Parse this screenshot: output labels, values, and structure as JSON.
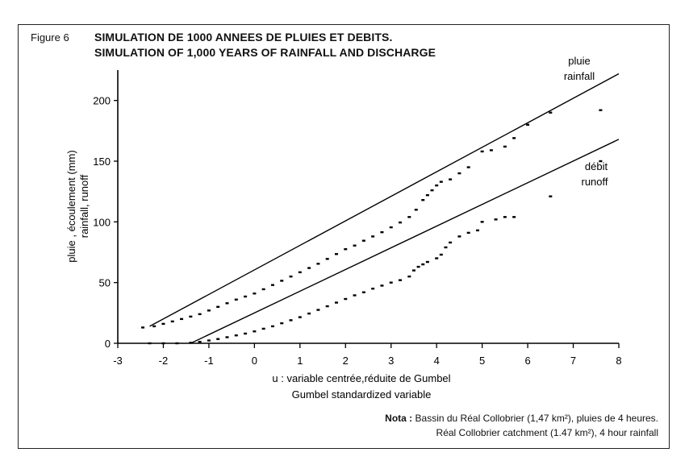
{
  "figure_label": "Figure 6",
  "title_fr": "SIMULATION DE 1000 ANNEES DE PLUIES ET DEBITS.",
  "title_en": "SIMULATION OF 1,000 YEARS OF RAINFALL AND DISCHARGE",
  "nota": {
    "prefix": "Nota :",
    "line1": "Bassin du Réal Collobrier (1,47 km²), pluies de 4 heures.",
    "line2": "Réal Collobrier catchment (1.47 km²), 4 hour rainfall"
  },
  "chart_data": {
    "type": "scatter",
    "xlabel_line1": "u : variable centrée,réduite de Gumbel",
    "xlabel_line2": "Gumbel standardized variable",
    "ylabel_line1": "pluie , écoulement  (mm)",
    "ylabel_line2": "rainfall, runoff",
    "xlim": [
      -3,
      8
    ],
    "ylim": [
      0,
      225
    ],
    "xticks": [
      -3,
      -2,
      -1,
      0,
      1,
      2,
      3,
      4,
      5,
      6,
      7,
      8
    ],
    "yticks": [
      0,
      50,
      100,
      150,
      200
    ],
    "series": [
      {
        "name_line1": "pluie",
        "name_line2": "rainfall",
        "fit_line": {
          "x": [
            -2.3,
            8.0
          ],
          "y": [
            14.0,
            222.0
          ]
        },
        "points": [
          [
            -2.45,
            13
          ],
          [
            -2.2,
            14
          ],
          [
            -2.0,
            16
          ],
          [
            -1.8,
            18
          ],
          [
            -1.6,
            20
          ],
          [
            -1.4,
            22
          ],
          [
            -1.2,
            24
          ],
          [
            -1.0,
            27
          ],
          [
            -0.8,
            30
          ],
          [
            -0.6,
            33
          ],
          [
            -0.4,
            36
          ],
          [
            -0.2,
            38.5
          ],
          [
            0.0,
            41
          ],
          [
            0.2,
            44.5
          ],
          [
            0.4,
            48
          ],
          [
            0.6,
            51.5
          ],
          [
            0.8,
            55
          ],
          [
            1.0,
            58.5
          ],
          [
            1.2,
            62
          ],
          [
            1.4,
            65.5
          ],
          [
            1.6,
            69.5
          ],
          [
            1.8,
            73.5
          ],
          [
            2.0,
            77.5
          ],
          [
            2.2,
            80.5
          ],
          [
            2.4,
            84.5
          ],
          [
            2.6,
            88
          ],
          [
            2.8,
            91.5
          ],
          [
            3.0,
            95.5
          ],
          [
            3.2,
            99.5
          ],
          [
            3.4,
            104
          ],
          [
            3.55,
            110
          ],
          [
            3.7,
            118
          ],
          [
            3.8,
            122
          ],
          [
            3.9,
            126
          ],
          [
            4.0,
            130
          ],
          [
            4.1,
            133
          ],
          [
            4.3,
            135
          ],
          [
            4.5,
            140
          ],
          [
            4.7,
            145
          ],
          [
            5.0,
            158
          ],
          [
            5.2,
            159
          ],
          [
            5.5,
            162
          ],
          [
            5.7,
            169
          ],
          [
            6.0,
            180
          ],
          [
            6.5,
            190
          ],
          [
            7.6,
            192
          ]
        ]
      },
      {
        "name_line1": "débit",
        "name_line2": "runoff",
        "fit_line": {
          "x": [
            -1.4,
            8.0
          ],
          "y": [
            0.0,
            168.0
          ]
        },
        "points": [
          [
            -2.3,
            0
          ],
          [
            -2.0,
            0
          ],
          [
            -1.7,
            0
          ],
          [
            -1.4,
            0.4
          ],
          [
            -1.2,
            1.2
          ],
          [
            -1.0,
            2.3
          ],
          [
            -0.8,
            3.5
          ],
          [
            -0.6,
            5
          ],
          [
            -0.4,
            6.5
          ],
          [
            -0.2,
            8
          ],
          [
            0.0,
            9.8
          ],
          [
            0.2,
            12
          ],
          [
            0.4,
            14
          ],
          [
            0.6,
            16.5
          ],
          [
            0.8,
            19
          ],
          [
            1.0,
            21.5
          ],
          [
            1.2,
            24.5
          ],
          [
            1.4,
            27.5
          ],
          [
            1.6,
            30.5
          ],
          [
            1.8,
            33.5
          ],
          [
            2.0,
            36.5
          ],
          [
            2.2,
            39.5
          ],
          [
            2.4,
            42
          ],
          [
            2.6,
            45
          ],
          [
            2.8,
            47.5
          ],
          [
            3.0,
            50
          ],
          [
            3.2,
            52
          ],
          [
            3.4,
            55
          ],
          [
            3.5,
            60
          ],
          [
            3.6,
            63
          ],
          [
            3.7,
            65
          ],
          [
            3.8,
            67
          ],
          [
            4.0,
            70
          ],
          [
            4.1,
            73
          ],
          [
            4.2,
            79
          ],
          [
            4.3,
            83
          ],
          [
            4.5,
            88
          ],
          [
            4.7,
            91
          ],
          [
            4.9,
            93
          ],
          [
            5.0,
            100
          ],
          [
            5.3,
            102
          ],
          [
            5.5,
            104
          ],
          [
            5.7,
            104
          ],
          [
            6.5,
            121
          ],
          [
            7.6,
            150
          ]
        ]
      }
    ],
    "grid": false
  }
}
